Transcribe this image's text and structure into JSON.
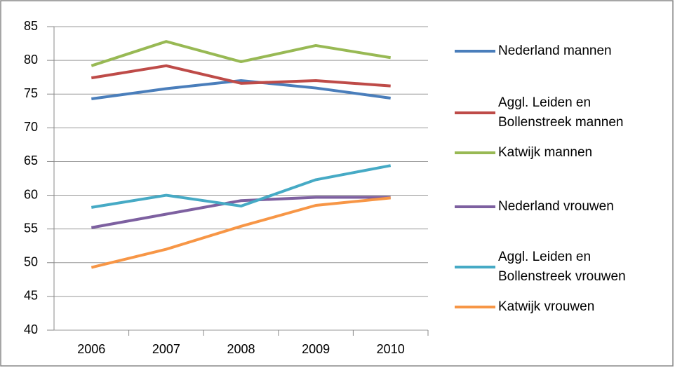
{
  "chart_data": {
    "type": "line",
    "categories": [
      "2006",
      "2007",
      "2008",
      "2009",
      "2010"
    ],
    "series": [
      {
        "name": "Nederland mannen",
        "color": "#4a7ebb",
        "values": [
          74.3,
          75.8,
          77.0,
          75.9,
          74.4
        ]
      },
      {
        "name": "Aggl. Leiden en Bollenstreek mannen",
        "color": "#be4b48",
        "values": [
          77.4,
          79.2,
          76.6,
          77.0,
          76.2
        ]
      },
      {
        "name": "Katwijk mannen",
        "color": "#98b954",
        "values": [
          79.2,
          82.8,
          79.8,
          82.2,
          80.4
        ]
      },
      {
        "name": "Nederland vrouwen",
        "color": "#7d60a0",
        "values": [
          55.2,
          57.2,
          59.2,
          59.7,
          59.7
        ]
      },
      {
        "name": "Aggl. Leiden en Bollenstreek vrouwen",
        "color": "#46aac5",
        "values": [
          58.2,
          60.0,
          58.4,
          62.3,
          64.4
        ]
      },
      {
        "name": "Katwijk vrouwen",
        "color": "#f79646",
        "values": [
          49.3,
          52.0,
          55.4,
          58.5,
          59.6
        ]
      }
    ],
    "ylim": [
      40,
      85
    ],
    "yticks": [
      40,
      45,
      50,
      55,
      60,
      65,
      70,
      75,
      80,
      85
    ],
    "grid": true
  }
}
